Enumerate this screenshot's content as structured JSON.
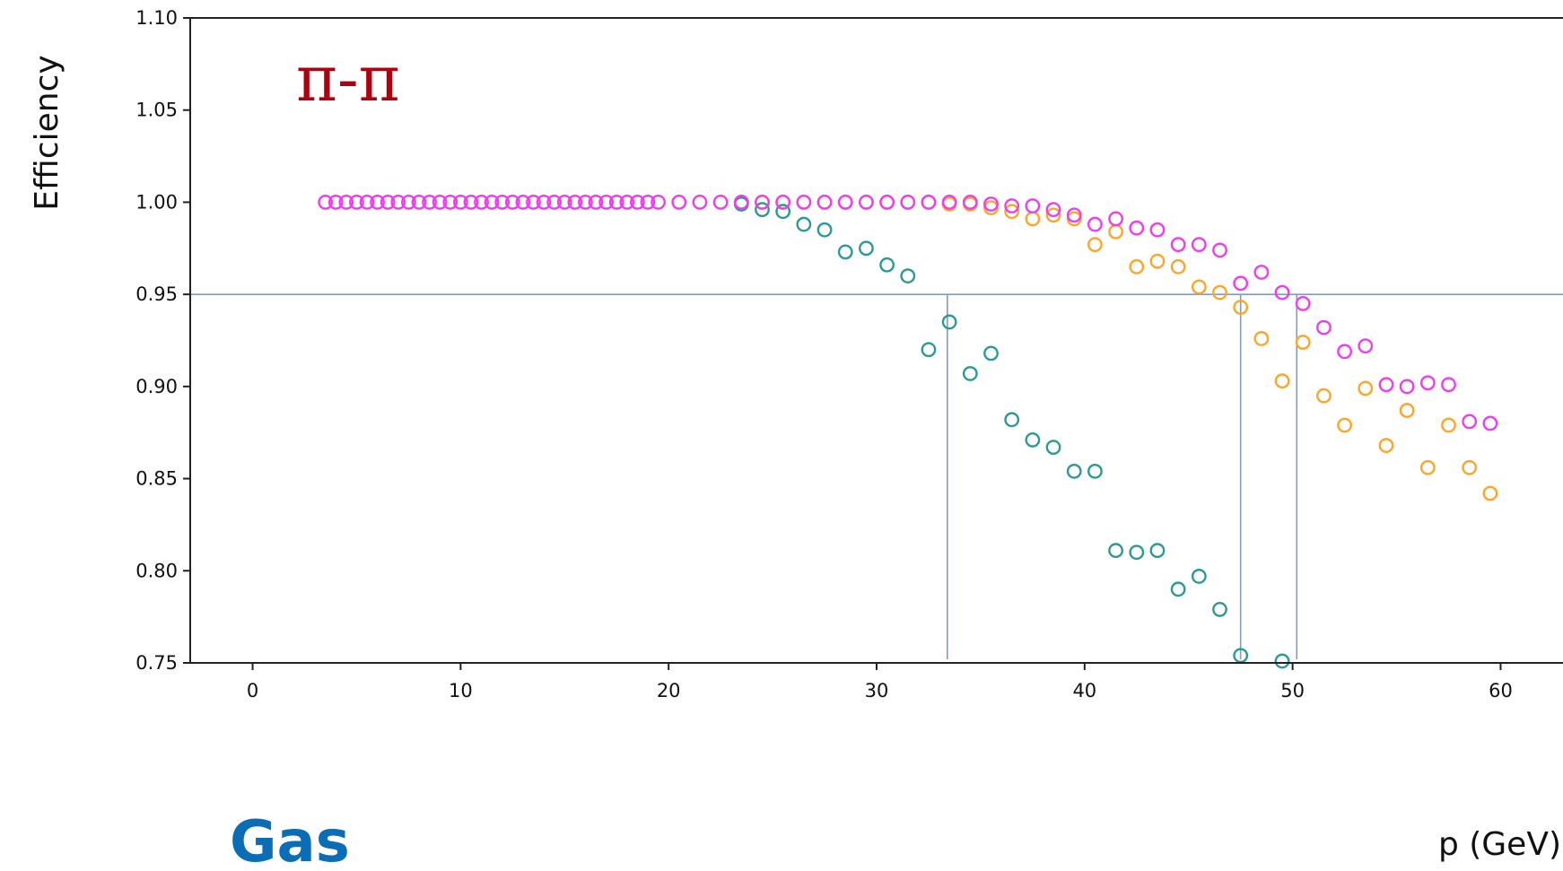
{
  "annotations": {
    "title": "π-π",
    "bottom_label": "Gas"
  },
  "chart_data": {
    "type": "scatter",
    "xlabel": "p (GeV)",
    "ylabel": "Efficiency",
    "xlim": [
      -3,
      63
    ],
    "ylim": [
      0.75,
      1.1
    ],
    "xticks": [
      0,
      10,
      20,
      30,
      40,
      50,
      60
    ],
    "xtick_labels": [
      "0",
      "10",
      "20",
      "30",
      "40",
      "50",
      "60"
    ],
    "yticks": [
      0.75,
      0.8,
      0.85,
      0.9,
      0.95,
      1.0,
      1.05,
      1.1
    ],
    "ytick_labels": [
      "0.75",
      "0.80",
      "0.85",
      "0.90",
      "0.95",
      "1.00",
      "1.05",
      "1.10"
    ],
    "grid": false,
    "marker": "open-circle",
    "reference_lines": {
      "horizontal": {
        "y": 0.95,
        "color": "#7f9ac4"
      },
      "vertical": [
        {
          "x": 33.4,
          "color": "#7f9ac4"
        },
        {
          "x": 47.5,
          "color": "#7f9ac4"
        },
        {
          "x": 50.2,
          "color": "#7f9ac4"
        }
      ]
    },
    "series": [
      {
        "color": "#ffa526",
        "x": [
          23.5,
          24.5,
          25.5,
          26.5,
          27.5,
          28.5,
          29.5,
          30.5,
          31.5,
          32.5,
          33.5,
          34.5,
          35.5,
          36.5,
          37.5,
          38.5,
          39.5,
          40.5,
          41.5,
          42.5,
          43.5,
          44.5,
          45.5,
          46.5,
          47.5,
          48.5,
          49.5,
          50.5,
          51.5,
          52.5,
          53.5,
          54.5,
          55.5,
          56.5,
          57.5,
          58.5,
          59.5
        ],
        "y": [
          1.0,
          1.0,
          1.0,
          1.0,
          1.0,
          1.0,
          1.0,
          1.0,
          1.0,
          1.0,
          0.999,
          0.999,
          0.997,
          0.995,
          0.991,
          0.993,
          0.991,
          0.977,
          0.984,
          0.965,
          0.968,
          0.965,
          0.954,
          0.951,
          0.943,
          0.926,
          0.903,
          0.924,
          0.895,
          0.879,
          0.899,
          0.868,
          0.887,
          0.856,
          0.879,
          0.856,
          0.842
        ]
      },
      {
        "color": "#2a9a94",
        "x": [
          23.5,
          24.5,
          25.5,
          26.5,
          27.5,
          28.5,
          29.5,
          30.5,
          31.5,
          32.5,
          33.5,
          34.5,
          35.5,
          36.5,
          37.5,
          38.5,
          39.5,
          40.5,
          41.5,
          42.5,
          43.5,
          44.5,
          45.5,
          46.5,
          47.5,
          49.5
        ],
        "y": [
          0.999,
          0.996,
          0.995,
          0.988,
          0.985,
          0.973,
          0.975,
          0.966,
          0.96,
          0.92,
          0.935,
          0.907,
          0.918,
          0.882,
          0.871,
          0.867,
          0.854,
          0.854,
          0.811,
          0.81,
          0.811,
          0.79,
          0.797,
          0.779,
          0.754,
          0.751
        ]
      },
      {
        "color": "#f03cf0",
        "x": [
          3.5,
          4.0,
          4.5,
          5.0,
          5.5,
          6.0,
          6.5,
          7.0,
          7.5,
          8.0,
          8.5,
          9.0,
          9.5,
          10.0,
          10.5,
          11.0,
          11.5,
          12.0,
          12.5,
          13.0,
          13.5,
          14.0,
          14.5,
          15.0,
          15.5,
          16.0,
          16.5,
          17.0,
          17.5,
          18.0,
          18.5,
          19.0,
          19.5,
          20.5,
          21.5,
          22.5,
          23.5,
          24.5,
          25.5,
          26.5,
          27.5,
          28.5,
          29.5,
          30.5,
          31.5,
          32.5,
          33.5,
          34.5,
          35.5,
          36.5,
          37.5,
          38.5,
          39.5,
          40.5,
          41.5,
          42.5,
          43.5,
          44.5,
          45.5,
          46.5,
          47.5,
          48.5,
          49.5,
          50.5,
          51.5,
          52.5,
          53.5,
          54.5,
          55.5,
          56.5,
          57.5,
          58.5,
          59.5
        ],
        "y": [
          1.0,
          1.0,
          1.0,
          1.0,
          1.0,
          1.0,
          1.0,
          1.0,
          1.0,
          1.0,
          1.0,
          1.0,
          1.0,
          1.0,
          1.0,
          1.0,
          1.0,
          1.0,
          1.0,
          1.0,
          1.0,
          1.0,
          1.0,
          1.0,
          1.0,
          1.0,
          1.0,
          1.0,
          1.0,
          1.0,
          1.0,
          1.0,
          1.0,
          1.0,
          1.0,
          1.0,
          1.0,
          1.0,
          1.0,
          1.0,
          1.0,
          1.0,
          1.0,
          1.0,
          1.0,
          1.0,
          1.0,
          1.0,
          0.999,
          0.998,
          0.998,
          0.996,
          0.993,
          0.988,
          0.991,
          0.986,
          0.985,
          0.977,
          0.977,
          0.974,
          0.956,
          0.962,
          0.951,
          0.945,
          0.932,
          0.919,
          0.922,
          0.901,
          0.9,
          0.902,
          0.901,
          0.881,
          0.88
        ]
      }
    ]
  }
}
